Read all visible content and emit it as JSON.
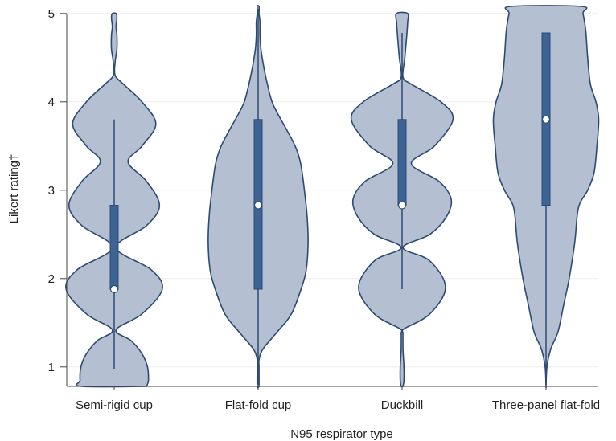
{
  "chart_data": {
    "type": "violin",
    "xlabel": "N95 respirator type",
    "ylabel": "Likert rating†",
    "ylim": [
      0.78,
      5.08
    ],
    "yticks": [
      1,
      2,
      3,
      4,
      5
    ],
    "grid": true,
    "categories": [
      "Semi-rigid cup",
      "Flat-fold cup",
      "Duckbill",
      "Three-panel flat-fold"
    ],
    "colors": {
      "fill": "#b4bfd2",
      "stroke": "#2d4a73",
      "box": "#3d6494",
      "grid": "#eeeeee",
      "axis": "#444444"
    },
    "violins": [
      {
        "name": "Semi-rigid cup",
        "median": 1.88,
        "q1": 1.88,
        "q3": 2.83,
        "whisker_low": 0.98,
        "whisker_high": 3.8,
        "density_y": [
          0.78,
          0.85,
          1.0,
          1.15,
          1.3,
          1.42,
          1.6,
          1.88,
          2.1,
          2.35,
          2.6,
          2.83,
          3.1,
          3.32,
          3.5,
          3.75,
          4.0,
          4.2,
          4.3,
          4.45,
          4.6,
          4.75,
          4.85,
          4.95,
          5.0
        ],
        "density_w": [
          0.35,
          0.37,
          0.36,
          0.3,
          0.18,
          0.02,
          0.3,
          0.52,
          0.4,
          0.02,
          0.35,
          0.49,
          0.35,
          0.15,
          0.3,
          0.45,
          0.3,
          0.1,
          0.01,
          0.01,
          0.03,
          0.03,
          0.02,
          0.03,
          0.02
        ]
      },
      {
        "name": "Flat-fold cup",
        "median": 2.83,
        "q1": 1.88,
        "q3": 3.8,
        "whisker_low": 0.8,
        "whisker_high": 5.05,
        "density_y": [
          0.78,
          1.0,
          1.08,
          1.2,
          1.4,
          1.6,
          1.9,
          2.1,
          2.4,
          2.7,
          3.0,
          3.3,
          3.5,
          3.7,
          3.85,
          4.0,
          4.2,
          4.4,
          4.6,
          4.75,
          4.9,
          5.0,
          5.08
        ],
        "density_w": [
          0.01,
          0.01,
          0.01,
          0.05,
          0.21,
          0.36,
          0.47,
          0.52,
          0.54,
          0.53,
          0.5,
          0.46,
          0.4,
          0.3,
          0.22,
          0.15,
          0.1,
          0.06,
          0.03,
          0.02,
          0.02,
          0.01,
          0.01
        ]
      },
      {
        "name": "Duckbill",
        "median": 2.83,
        "q1": 2.83,
        "q3": 3.8,
        "whisker_low": 1.88,
        "whisker_high": 4.78,
        "density_y": [
          0.78,
          0.85,
          1.0,
          1.2,
          1.38,
          1.43,
          1.6,
          1.9,
          2.2,
          2.35,
          2.5,
          2.7,
          2.9,
          3.1,
          3.3,
          3.5,
          3.8,
          4.0,
          4.2,
          4.28,
          4.5,
          4.75,
          4.9,
          5.0
        ],
        "density_w": [
          0.01,
          0.02,
          0.02,
          0.01,
          0.01,
          0.02,
          0.3,
          0.47,
          0.3,
          0.01,
          0.3,
          0.48,
          0.53,
          0.4,
          0.1,
          0.35,
          0.55,
          0.42,
          0.1,
          0.01,
          0.03,
          0.05,
          0.06,
          0.06
        ]
      },
      {
        "name": "Three-panel flat-fold",
        "median": 3.8,
        "q1": 2.83,
        "q3": 4.78,
        "whisker_low": 0.8,
        "whisker_high": 4.78,
        "density_y": [
          0.78,
          1.0,
          1.2,
          1.4,
          1.7,
          2.0,
          2.4,
          2.8,
          3.0,
          3.2,
          3.5,
          3.8,
          4.0,
          4.2,
          4.5,
          4.8,
          5.0,
          5.08
        ],
        "density_w": [
          0.0,
          0.01,
          0.05,
          0.13,
          0.19,
          0.25,
          0.31,
          0.35,
          0.45,
          0.52,
          0.55,
          0.57,
          0.54,
          0.48,
          0.45,
          0.43,
          0.4,
          0.38
        ]
      }
    ]
  }
}
